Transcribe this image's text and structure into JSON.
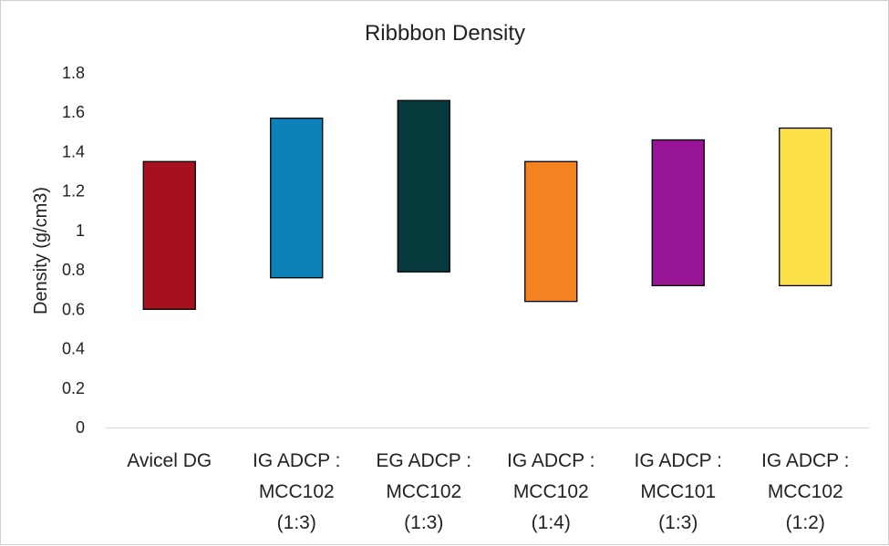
{
  "chart_data": {
    "type": "bar",
    "subtype": "floating-range",
    "title": "Ribbbon Density",
    "xlabel": "",
    "ylabel": "Density (g/cm3)",
    "ylim": [
      0,
      1.8
    ],
    "yticks": [
      "0",
      "0.2",
      "0.4",
      "0.6",
      "0.8",
      "1",
      "1.2",
      "1.4",
      "1.6",
      "1.8"
    ],
    "grid": false,
    "legend": "none",
    "categories": [
      [
        "Avicel DG"
      ],
      [
        "IG ADCP :",
        "MCC102",
        "(1:3)"
      ],
      [
        "EG ADCP :",
        "MCC102",
        "(1:3)"
      ],
      [
        "IG ADCP :",
        "MCC102",
        "(1:4)"
      ],
      [
        "IG ADCP :",
        "MCC101",
        "(1:3)"
      ],
      [
        "IG ADCP :",
        "MCC102",
        "(1:2)"
      ]
    ],
    "low": [
      0.6,
      0.76,
      0.79,
      0.64,
      0.72,
      0.72
    ],
    "high": [
      1.35,
      1.57,
      1.66,
      1.35,
      1.46,
      1.52
    ],
    "colors": [
      "#a5111e",
      "#0d82b8",
      "#063a3c",
      "#f38221",
      "#971494",
      "#fce14a"
    ]
  }
}
